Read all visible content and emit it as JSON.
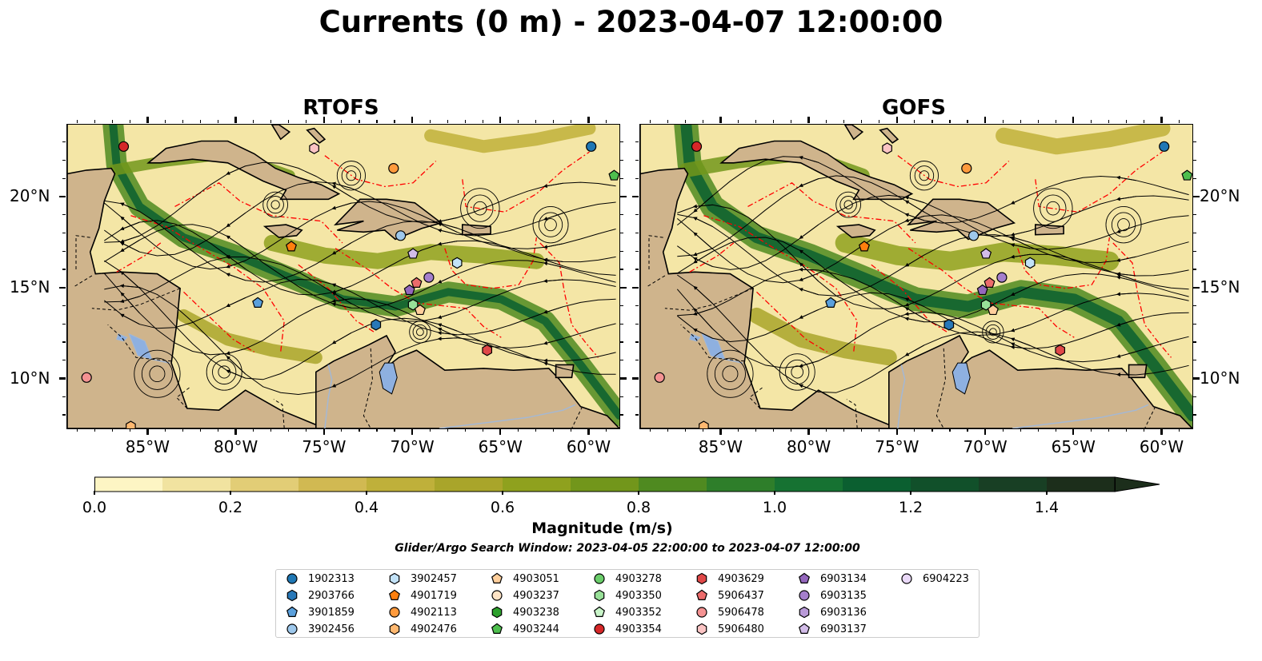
{
  "title": "Currents (0 m) - 2023-04-07 12:00:00",
  "panels": [
    {
      "title": "RTOFS"
    },
    {
      "title": "GOFS"
    }
  ],
  "axes": {
    "lon_ticks": [
      "85°W",
      "80°W",
      "75°W",
      "70°W",
      "65°W",
      "60°W"
    ],
    "lon_values": [
      -85,
      -80,
      -75,
      -70,
      -65,
      -60
    ],
    "lat_ticks": [
      "20°N",
      "15°N",
      "10°N"
    ],
    "lat_values": [
      20,
      15,
      10
    ],
    "lon_range": [
      -89.6,
      -58.3
    ],
    "lat_range": [
      7.3,
      24.0
    ]
  },
  "colorbar": {
    "label": "Magnitude (m/s)",
    "ticks": [
      "0.0",
      "0.2",
      "0.4",
      "0.6",
      "0.8",
      "1.0",
      "1.2",
      "1.4"
    ],
    "tick_values": [
      0.0,
      0.2,
      0.4,
      0.6,
      0.8,
      1.0,
      1.2,
      1.4
    ],
    "range": [
      0.0,
      1.5
    ],
    "extend": "max",
    "colors": [
      "#fdf5c4",
      "#f1e3a0",
      "#e2cd76",
      "#d1b952",
      "#bfb03a",
      "#a9a52a",
      "#8fa11e",
      "#72961b",
      "#4f8a20",
      "#2e7e2a",
      "#167232",
      "#0b5f30",
      "#11502a",
      "#183f24",
      "#1c2e1b"
    ]
  },
  "search_window": "Glider/Argo Search Window: 2023-04-05 22:00:00 to 2023-04-07 12:00:00",
  "colors": {
    "land": "#cfb48c",
    "boundary": "#ff0000",
    "river": "#a4b8d4",
    "lake": "#8eb0e0"
  },
  "legend": [
    {
      "id": "1902313",
      "marker": "circle",
      "color": "#1f77b4"
    },
    {
      "id": "2903766",
      "marker": "hexagon",
      "color": "#2878b8"
    },
    {
      "id": "3901859",
      "marker": "pentagon",
      "color": "#5aa0dc"
    },
    {
      "id": "3902456",
      "marker": "circle",
      "color": "#9ec8ec"
    },
    {
      "id": "3902457",
      "marker": "hexagon",
      "color": "#c2e2f8"
    },
    {
      "id": "4901719",
      "marker": "pentagon",
      "color": "#ff7f0e"
    },
    {
      "id": "4902113",
      "marker": "circle",
      "color": "#ff9a3c"
    },
    {
      "id": "4902476",
      "marker": "hexagon",
      "color": "#ffb870"
    },
    {
      "id": "4903051",
      "marker": "pentagon",
      "color": "#ffcf9c"
    },
    {
      "id": "4903237",
      "marker": "circle",
      "color": "#ffe4c6"
    },
    {
      "id": "4903238",
      "marker": "hexagon",
      "color": "#2ca02c"
    },
    {
      "id": "4903244",
      "marker": "pentagon",
      "color": "#4ebf4e"
    },
    {
      "id": "4903278",
      "marker": "circle",
      "color": "#6acd6a"
    },
    {
      "id": "4903350",
      "marker": "hexagon",
      "color": "#98e098"
    },
    {
      "id": "4903352",
      "marker": "pentagon",
      "color": "#c8f4c8"
    },
    {
      "id": "4903354",
      "marker": "circle",
      "color": "#d62728"
    },
    {
      "id": "4903629",
      "marker": "hexagon",
      "color": "#e04848"
    },
    {
      "id": "5906437",
      "marker": "pentagon",
      "color": "#ec6b6b"
    },
    {
      "id": "5906478",
      "marker": "circle",
      "color": "#f49292"
    },
    {
      "id": "5906480",
      "marker": "hexagon",
      "color": "#fbc4c4"
    },
    {
      "id": "6903134",
      "marker": "pentagon",
      "color": "#9467bd"
    },
    {
      "id": "6903135",
      "marker": "circle",
      "color": "#a57fcc"
    },
    {
      "id": "6903136",
      "marker": "hexagon",
      "color": "#b99ad8"
    },
    {
      "id": "6903137",
      "marker": "pentagon",
      "color": "#d2bce8"
    },
    {
      "id": "6904223",
      "marker": "circle",
      "color": "#ead9f8"
    }
  ],
  "floats": {
    "rtofs": [
      {
        "id": "4903354",
        "lon": -86.4,
        "lat": 22.8
      },
      {
        "id": "5906480",
        "lon": -75.6,
        "lat": 22.7
      },
      {
        "id": "4902113",
        "lon": -71.1,
        "lat": 21.6
      },
      {
        "id": "1902313",
        "lon": -59.9,
        "lat": 22.8
      },
      {
        "id": "4903244",
        "lon": -58.6,
        "lat": 21.2
      },
      {
        "id": "4901719",
        "lon": -76.9,
        "lat": 17.3
      },
      {
        "id": "3902456",
        "lon": -70.7,
        "lat": 17.9
      },
      {
        "id": "6903137",
        "lon": -70.0,
        "lat": 16.9
      },
      {
        "id": "3902457",
        "lon": -67.5,
        "lat": 16.4
      },
      {
        "id": "6903135",
        "lon": -69.1,
        "lat": 15.6
      },
      {
        "id": "5906437",
        "lon": -69.8,
        "lat": 15.3
      },
      {
        "id": "6903134",
        "lon": -70.2,
        "lat": 14.9
      },
      {
        "id": "4903350",
        "lon": -70.0,
        "lat": 14.1
      },
      {
        "id": "4903051",
        "lon": -69.6,
        "lat": 13.8
      },
      {
        "id": "3901859",
        "lon": -78.8,
        "lat": 14.2
      },
      {
        "id": "2903766",
        "lon": -72.1,
        "lat": 13.0
      },
      {
        "id": "4903629",
        "lon": -65.8,
        "lat": 11.6
      },
      {
        "id": "5906478",
        "lon": -88.5,
        "lat": 10.1
      },
      {
        "id": "4902476",
        "lon": -86.0,
        "lat": 7.4
      }
    ],
    "gofs": [
      {
        "id": "4903354",
        "lon": -86.4,
        "lat": 22.8
      },
      {
        "id": "5906480",
        "lon": -75.6,
        "lat": 22.7
      },
      {
        "id": "4902113",
        "lon": -71.1,
        "lat": 21.6
      },
      {
        "id": "1902313",
        "lon": -59.9,
        "lat": 22.8
      },
      {
        "id": "4903244",
        "lon": -58.6,
        "lat": 21.2
      },
      {
        "id": "4901719",
        "lon": -76.9,
        "lat": 17.3
      },
      {
        "id": "3902456",
        "lon": -70.7,
        "lat": 17.9
      },
      {
        "id": "6903137",
        "lon": -70.0,
        "lat": 16.9
      },
      {
        "id": "3902457",
        "lon": -67.5,
        "lat": 16.4
      },
      {
        "id": "6903135",
        "lon": -69.1,
        "lat": 15.6
      },
      {
        "id": "5906437",
        "lon": -69.8,
        "lat": 15.3
      },
      {
        "id": "6903134",
        "lon": -70.2,
        "lat": 14.9
      },
      {
        "id": "4903350",
        "lon": -70.0,
        "lat": 14.1
      },
      {
        "id": "4903051",
        "lon": -69.6,
        "lat": 13.8
      },
      {
        "id": "3901859",
        "lon": -78.8,
        "lat": 14.2
      },
      {
        "id": "2903766",
        "lon": -72.1,
        "lat": 13.0
      },
      {
        "id": "4903629",
        "lon": -65.8,
        "lat": 11.6
      },
      {
        "id": "5906478",
        "lon": -88.5,
        "lat": 10.1
      },
      {
        "id": "4902476",
        "lon": -86.0,
        "lat": 7.4
      }
    ]
  }
}
